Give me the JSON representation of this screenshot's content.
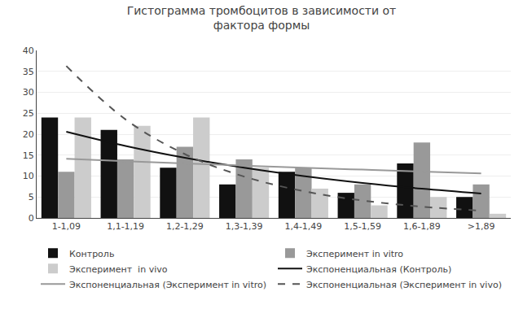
{
  "chart_data": {
    "type": "bar",
    "title": "Гистограмма тромбоцитов в зависимости от\nфактора формы",
    "categories": [
      "1-1,09",
      "1,1-1,19",
      "1,2-1,29",
      "1,3-1,39",
      "1,4-1,49",
      "1,5-1,59",
      "1,6-1,89",
      ">1,89"
    ],
    "series": [
      {
        "name": "Контроль",
        "type": "bar",
        "color": "#111111",
        "values": [
          24,
          21,
          12,
          8,
          11,
          6,
          13,
          5
        ]
      },
      {
        "name": "Эксперимент in vitro",
        "type": "bar",
        "color": "#999999",
        "values": [
          11,
          14,
          17,
          14,
          12,
          8,
          18,
          8
        ]
      },
      {
        "name": "Эксперимент  in vivo",
        "type": "bar",
        "color": "#cccccc",
        "values": [
          24,
          22,
          24,
          12,
          7,
          3,
          5,
          1
        ]
      },
      {
        "name": "Экспоненциальная (Контроль)",
        "type": "line",
        "color": "#111111",
        "line_style": "solid",
        "values": [
          20.59,
          17.19,
          14.36,
          11.99,
          10.01,
          8.36,
          6.98,
          5.83
        ]
      },
      {
        "name": "Экспоненциальная (Эксперимент in vitro)",
        "type": "line",
        "color": "#999999",
        "line_style": "solid",
        "values": [
          14.11,
          13.55,
          13.01,
          12.5,
          12.0,
          11.53,
          11.07,
          10.64
        ]
      },
      {
        "name": "Экспоненциальная (Эксперимент in vivo)",
        "type": "line",
        "color": "#555555",
        "line_style": "dashed",
        "values": [
          36.28,
          23.51,
          15.24,
          9.88,
          6.4,
          4.15,
          2.69,
          1.74
        ]
      }
    ],
    "ylim": [
      0,
      40
    ],
    "yticks": [
      0,
      5,
      10,
      15,
      20,
      25,
      30,
      35,
      40
    ],
    "grid": true,
    "legend": "bottom"
  }
}
